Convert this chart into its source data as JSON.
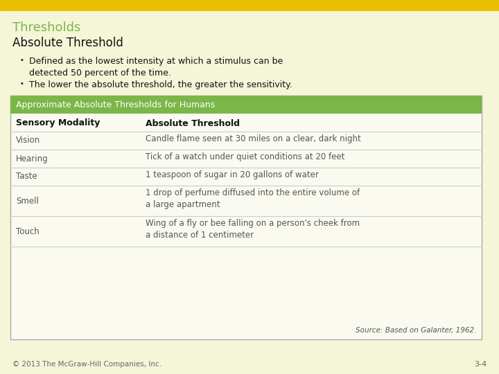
{
  "title": "Thresholds",
  "subtitle": "Absolute Threshold",
  "bullets": [
    "Defined as the lowest intensity at which a stimulus can be\ndetected 50 percent of the time.",
    "The lower the absolute threshold, the greater the sensitivity."
  ],
  "table_header": "Approximate Absolute Thresholds for Humans",
  "col_headers": [
    "Sensory Modality",
    "Absolute Threshold"
  ],
  "rows": [
    [
      "Vision",
      "Candle flame seen at 30 miles on a clear, dark night"
    ],
    [
      "Hearing",
      "Tick of a watch under quiet conditions at 20 feet"
    ],
    [
      "Taste",
      "1 teaspoon of sugar in 20 gallons of water"
    ],
    [
      "Smell",
      "1 drop of perfume diffused into the entire volume of\na large apartment"
    ],
    [
      "Touch",
      "Wing of a fly or bee falling on a person's cheek from\na distance of 1 centimeter"
    ]
  ],
  "source": "Source: Based on Galanter, 1962.",
  "footer": "© 2013 The McGraw-Hill Companies, Inc.",
  "page_num": "3-4",
  "bg_color": "#f5f5d8",
  "header_bar_color": "#e8c000",
  "title_color": "#7ab648",
  "subtitle_color": "#111111",
  "bullet_color": "#111111",
  "table_header_bg": "#7ab648",
  "table_header_text": "#ffffff",
  "table_bg": "#fafaf0",
  "col_header_color": "#111111",
  "row_text_color": "#555555",
  "footer_color": "#666666",
  "source_color": "#555555",
  "divider_color": "#cccccc"
}
